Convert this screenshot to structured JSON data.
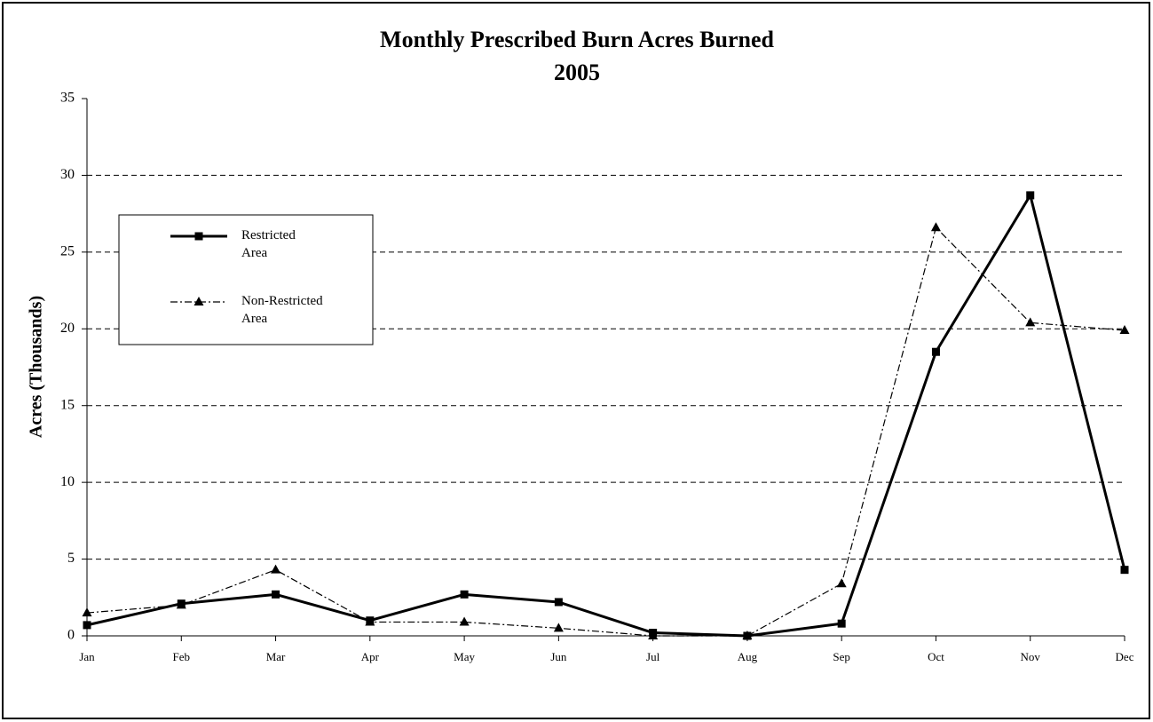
{
  "chart_data": {
    "type": "line",
    "title": "Monthly Prescribed Burn Acres Burned",
    "subtitle": "2005",
    "y_label": "Acres (Thousands)",
    "categories": [
      "Jan",
      "Feb",
      "Mar",
      "Apr",
      "May",
      "Jun",
      "Jul",
      "Aug",
      "Sep",
      "Oct",
      "Nov",
      "Dec"
    ],
    "series": [
      {
        "name": "Restricted Area",
        "color": "#000000",
        "line_style": "solid",
        "marker": "square",
        "values": [
          0.7,
          2.1,
          2.7,
          1.0,
          2.7,
          2.2,
          0.2,
          0.0,
          0.8,
          18.5,
          28.7,
          4.3
        ]
      },
      {
        "name": "Non-Restricted Area",
        "color": "#000000",
        "line_style": "dashdot",
        "marker": "triangle",
        "values": [
          1.5,
          2.0,
          4.3,
          0.9,
          0.9,
          0.5,
          0.0,
          0.0,
          3.4,
          26.6,
          20.4,
          19.9
        ]
      }
    ],
    "ylim": [
      0,
      35
    ],
    "yticks": [
      0,
      5,
      10,
      15,
      20,
      25,
      30,
      35
    ],
    "grid": true,
    "legend": "upper left"
  }
}
